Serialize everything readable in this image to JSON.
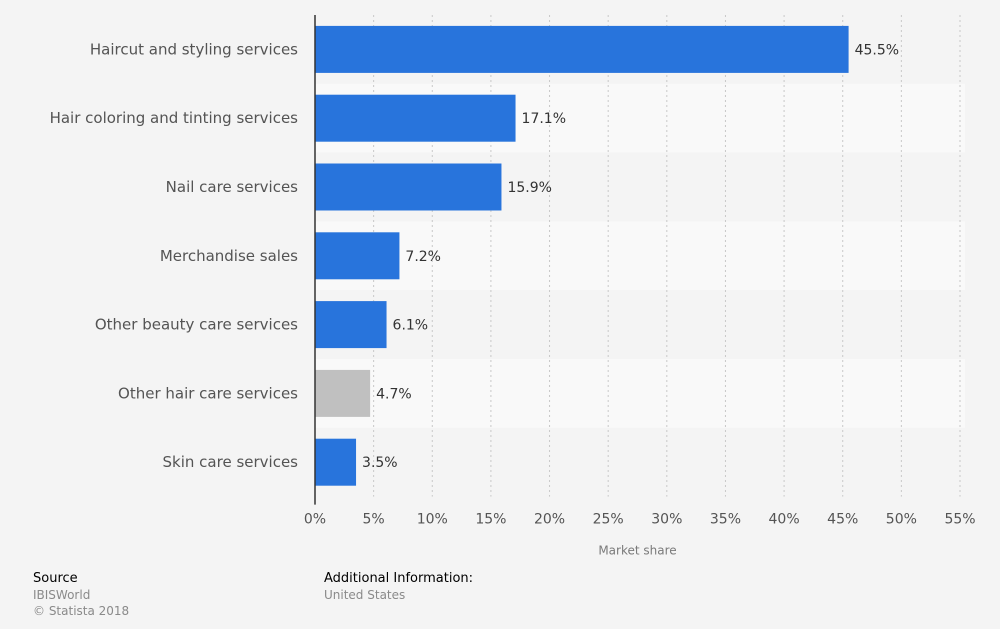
{
  "chart_data": {
    "type": "bar",
    "orientation": "horizontal",
    "categories": [
      "Haircut and styling services",
      "Hair coloring and tinting services",
      "Nail care services",
      "Merchandise sales",
      "Other beauty care services",
      "Other hair care services",
      "Skin care services"
    ],
    "values": [
      45.5,
      17.1,
      15.9,
      7.2,
      6.1,
      4.7,
      3.5
    ],
    "value_labels": [
      "45.5%",
      "17.1%",
      "15.9%",
      "7.2%",
      "6.1%",
      "4.7%",
      "3.5%"
    ],
    "bar_colors": [
      "#2874dc",
      "#2874dc",
      "#2874dc",
      "#2874dc",
      "#2874dc",
      "#c0c0c0",
      "#2874dc"
    ],
    "xlabel": "Market share",
    "ylabel": "",
    "xlim": [
      0,
      55
    ],
    "ticks": [
      0,
      5,
      10,
      15,
      20,
      25,
      30,
      35,
      40,
      45,
      50,
      55
    ],
    "tick_labels": [
      "0%",
      "5%",
      "10%",
      "15%",
      "20%",
      "25%",
      "30%",
      "35%",
      "40%",
      "45%",
      "50%",
      "55%"
    ],
    "grid": true
  },
  "footer": {
    "source_heading": "Source",
    "source_name": "IBISWorld",
    "copyright": "© Statista 2018",
    "additional_heading": "Additional Information:",
    "additional_text": "United States"
  },
  "colors": {
    "primary_bar": "#2874dc",
    "highlight_bar": "#c0c0c0",
    "background": "#f4f4f4"
  }
}
